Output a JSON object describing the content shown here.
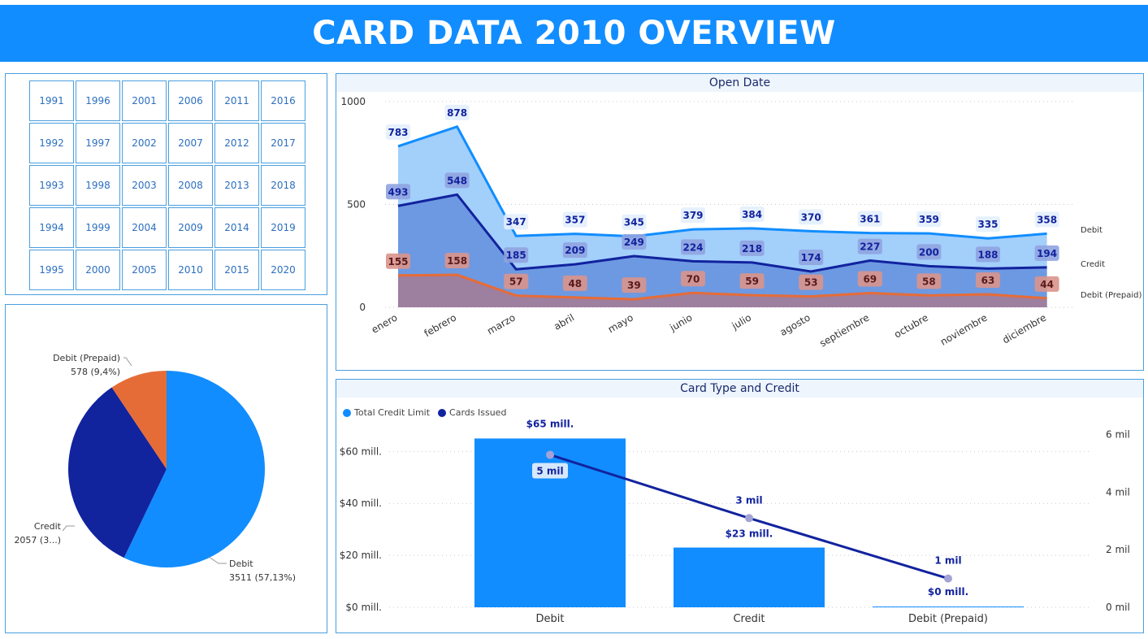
{
  "header": {
    "title": "CARD DATA 2010 OVERVIEW"
  },
  "years": [
    "1991",
    "1996",
    "2001",
    "2006",
    "2011",
    "2016",
    "1992",
    "1997",
    "2002",
    "2007",
    "2012",
    "2017",
    "1993",
    "1998",
    "2003",
    "2008",
    "2013",
    "2018",
    "1994",
    "1999",
    "2004",
    "2009",
    "2014",
    "2019",
    "1995",
    "2000",
    "2005",
    "2010",
    "2015",
    "2020"
  ],
  "line_chart": {
    "title": "Open Date"
  },
  "bar_chart": {
    "title": "Card Type and Credit",
    "legend": [
      {
        "label": "Total Credit Limit",
        "color": "#118dff"
      },
      {
        "label": "Cards Issued",
        "color": "#12239e"
      }
    ]
  },
  "colors": {
    "debit": "#118dff",
    "credit": "#12239e",
    "prepaid": "#e66c37",
    "accent": "#118dff"
  },
  "chart_data": [
    {
      "type": "area",
      "title": "Open Date",
      "categories": [
        "enero",
        "febrero",
        "marzo",
        "abril",
        "mayo",
        "junio",
        "julio",
        "agosto",
        "septiembre",
        "octubre",
        "noviembre",
        "diciembre"
      ],
      "ylim": [
        0,
        1000
      ],
      "yticks": [
        "0",
        "500",
        "1000"
      ],
      "series": [
        {
          "name": "Debit",
          "values": [
            783,
            878,
            347,
            357,
            345,
            379,
            384,
            370,
            361,
            359,
            335,
            358
          ]
        },
        {
          "name": "Credit",
          "values": [
            493,
            548,
            185,
            209,
            249,
            224,
            218,
            174,
            227,
            200,
            188,
            194
          ]
        },
        {
          "name": "Debit (Prepaid)",
          "values": [
            155,
            158,
            57,
            48,
            39,
            70,
            59,
            53,
            69,
            58,
            63,
            44
          ]
        }
      ],
      "legend_position": "right"
    },
    {
      "type": "bar",
      "title": "Card Type and Credit",
      "categories": [
        "Debit",
        "Credit",
        "Debit (Prepaid)"
      ],
      "series": [
        {
          "name": "Total Credit Limit",
          "values": [
            65,
            23,
            0.3
          ],
          "labels": [
            "$65 mill.",
            "$23 mill.",
            "$0 mill."
          ],
          "axis": "left"
        },
        {
          "name": "Cards Issued",
          "values": [
            5.3,
            3.1,
            1.0
          ],
          "labels": [
            "5 mil",
            "3 mil",
            "1 mil"
          ],
          "axis": "right"
        }
      ],
      "yticks_left": [
        "$0 mill.",
        "$20 mill.",
        "$40 mill.",
        "$60 mill."
      ],
      "yticks_right": [
        "0 mil",
        "2 mil",
        "4 mil",
        "6 mil"
      ],
      "ylim_left": [
        0,
        72
      ],
      "ylim_right": [
        0,
        6.5
      ]
    },
    {
      "type": "pie",
      "categories": [
        "Debit",
        "Credit",
        "Debit (Prepaid)"
      ],
      "values": [
        3511,
        2057,
        578
      ],
      "labels": [
        {
          "name": "Debit",
          "value": "3511 (57,13%)"
        },
        {
          "name": "Credit",
          "value": "2057 (3...)"
        },
        {
          "name": "Debit (Prepaid)",
          "value": "578 (9,4%)"
        }
      ]
    }
  ]
}
